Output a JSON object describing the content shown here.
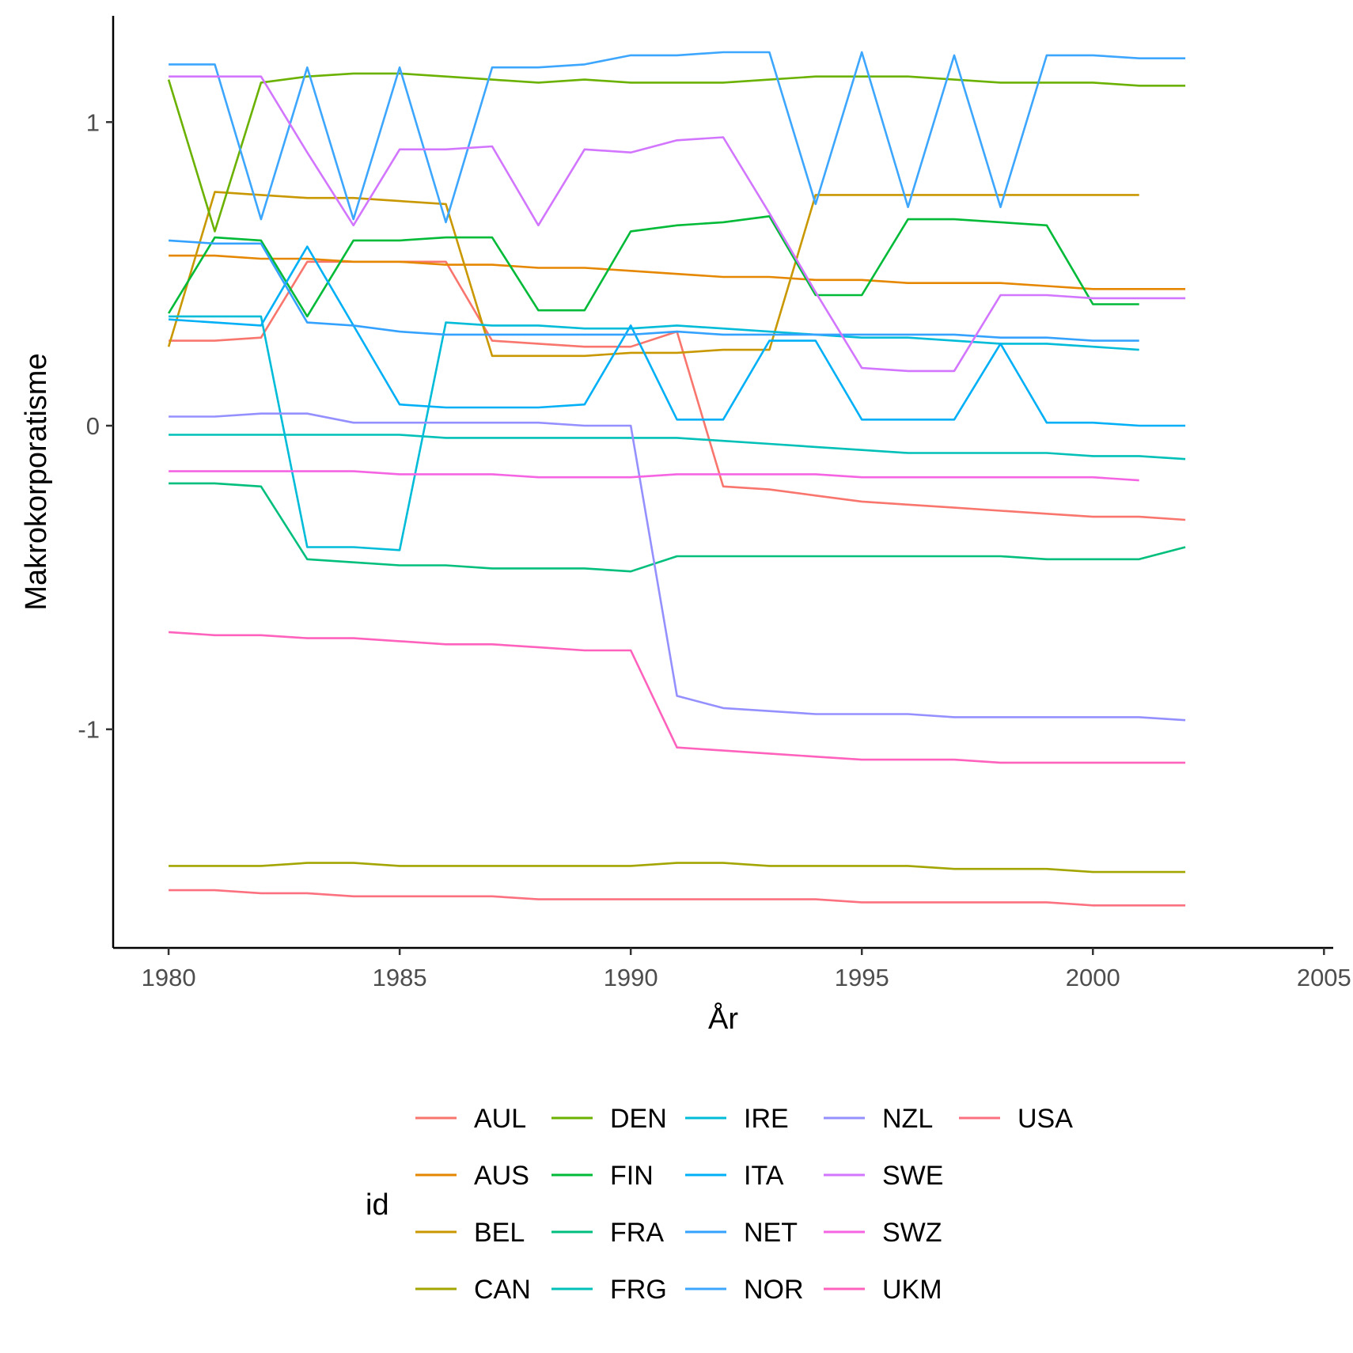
{
  "chart_data": {
    "type": "line",
    "title": "",
    "xlabel": "År",
    "ylabel": "Makrokorporatisme",
    "xlim": [
      1978.8,
      2005.2
    ],
    "ylim": [
      -1.72,
      1.35
    ],
    "x_ticks": [
      1980,
      1985,
      1990,
      1995,
      2000,
      2005
    ],
    "y_ticks": [
      1,
      0,
      -1
    ],
    "y_tick_labels": [
      "1",
      "0",
      "-1"
    ],
    "grid": false,
    "legend": {
      "title": "id",
      "position": "bottom",
      "columns": 5
    },
    "series": [
      {
        "name": "AUL",
        "color": "#F8766D",
        "x": [
          1980,
          1981,
          1982,
          1983,
          1984,
          1985,
          1986,
          1987,
          1988,
          1989,
          1990,
          1991,
          1992,
          1993,
          1994,
          1995,
          1996,
          1997,
          1998,
          1999,
          2000,
          2001,
          2002
        ],
        "y": [
          0.28,
          0.28,
          0.29,
          0.54,
          0.54,
          0.54,
          0.54,
          0.28,
          0.27,
          0.26,
          0.26,
          0.31,
          -0.2,
          -0.21,
          -0.23,
          -0.25,
          -0.26,
          -0.27,
          -0.28,
          -0.29,
          -0.3,
          -0.3,
          -0.31
        ]
      },
      {
        "name": "AUS",
        "color": "#E58700",
        "x": [
          1980,
          1981,
          1982,
          1983,
          1984,
          1985,
          1986,
          1987,
          1988,
          1989,
          1990,
          1991,
          1992,
          1993,
          1994,
          1995,
          1996,
          1997,
          1998,
          1999,
          2000,
          2001,
          2002
        ],
        "y": [
          0.56,
          0.56,
          0.55,
          0.55,
          0.54,
          0.54,
          0.53,
          0.53,
          0.52,
          0.52,
          0.51,
          0.5,
          0.49,
          0.49,
          0.48,
          0.48,
          0.47,
          0.47,
          0.47,
          0.46,
          0.45,
          0.45,
          0.45
        ]
      },
      {
        "name": "BEL",
        "color": "#C99800",
        "x": [
          1980,
          1981,
          1982,
          1983,
          1984,
          1985,
          1986,
          1987,
          1988,
          1989,
          1990,
          1991,
          1992,
          1993,
          1994,
          1995,
          1996,
          1997,
          1998,
          1999,
          2000,
          2001
        ],
        "y": [
          0.26,
          0.77,
          0.76,
          0.75,
          0.75,
          0.74,
          0.73,
          0.23,
          0.23,
          0.23,
          0.24,
          0.24,
          0.25,
          0.25,
          0.76,
          0.76,
          0.76,
          0.76,
          0.76,
          0.76,
          0.76,
          0.76
        ]
      },
      {
        "name": "CAN",
        "color": "#A3A500",
        "x": [
          1980,
          1981,
          1982,
          1983,
          1984,
          1985,
          1986,
          1987,
          1988,
          1989,
          1990,
          1991,
          1992,
          1993,
          1994,
          1995,
          1996,
          1997,
          1998,
          1999,
          2000,
          2001,
          2002
        ],
        "y": [
          -1.45,
          -1.45,
          -1.45,
          -1.44,
          -1.44,
          -1.45,
          -1.45,
          -1.45,
          -1.45,
          -1.45,
          -1.45,
          -1.44,
          -1.44,
          -1.45,
          -1.45,
          -1.45,
          -1.45,
          -1.46,
          -1.46,
          -1.46,
          -1.47,
          -1.47,
          -1.47
        ]
      },
      {
        "name": "DEN",
        "color": "#6BB100",
        "x": [
          1980,
          1981,
          1982,
          1983,
          1984,
          1985,
          1986,
          1987,
          1988,
          1989,
          1990,
          1991,
          1992,
          1993,
          1994,
          1995,
          1996,
          1997,
          1998,
          1999,
          2000,
          2001,
          2002
        ],
        "y": [
          1.14,
          0.64,
          1.13,
          1.15,
          1.16,
          1.16,
          1.15,
          1.14,
          1.13,
          1.14,
          1.13,
          1.13,
          1.13,
          1.14,
          1.15,
          1.15,
          1.15,
          1.14,
          1.13,
          1.13,
          1.13,
          1.12,
          1.12
        ]
      },
      {
        "name": "FIN",
        "color": "#00BA38",
        "x": [
          1980,
          1981,
          1982,
          1983,
          1984,
          1985,
          1986,
          1987,
          1988,
          1989,
          1990,
          1991,
          1992,
          1993,
          1994,
          1995,
          1996,
          1997,
          1998,
          1999,
          2000,
          2001
        ],
        "y": [
          0.37,
          0.62,
          0.61,
          0.36,
          0.61,
          0.61,
          0.62,
          0.62,
          0.38,
          0.38,
          0.64,
          0.66,
          0.67,
          0.69,
          0.43,
          0.43,
          0.68,
          0.68,
          0.67,
          0.66,
          0.4,
          0.4
        ]
      },
      {
        "name": "FRA",
        "color": "#00BF7D",
        "x": [
          1980,
          1981,
          1982,
          1983,
          1984,
          1985,
          1986,
          1987,
          1988,
          1989,
          1990,
          1991,
          1992,
          1993,
          1994,
          1995,
          1996,
          1997,
          1998,
          1999,
          2000,
          2001,
          2002
        ],
        "y": [
          -0.19,
          -0.19,
          -0.2,
          -0.44,
          -0.45,
          -0.46,
          -0.46,
          -0.47,
          -0.47,
          -0.47,
          -0.48,
          -0.43,
          -0.43,
          -0.43,
          -0.43,
          -0.43,
          -0.43,
          -0.43,
          -0.43,
          -0.44,
          -0.44,
          -0.44,
          -0.4
        ]
      },
      {
        "name": "FRG",
        "color": "#00C0B8",
        "x": [
          1980,
          1981,
          1982,
          1983,
          1984,
          1985,
          1986,
          1987,
          1988,
          1989,
          1990,
          1991,
          1992,
          1993,
          1994,
          1995,
          1996,
          1997,
          1998,
          1999,
          2000,
          2001,
          2002
        ],
        "y": [
          -0.03,
          -0.03,
          -0.03,
          -0.03,
          -0.03,
          -0.03,
          -0.04,
          -0.04,
          -0.04,
          -0.04,
          -0.04,
          -0.04,
          -0.05,
          -0.06,
          -0.07,
          -0.08,
          -0.09,
          -0.09,
          -0.09,
          -0.09,
          -0.1,
          -0.1,
          -0.11
        ]
      },
      {
        "name": "IRE",
        "color": "#00BCD8",
        "x": [
          1980,
          1981,
          1982,
          1983,
          1984,
          1985,
          1986,
          1987,
          1988,
          1989,
          1990,
          1991,
          1992,
          1993,
          1994,
          1995,
          1996,
          1997,
          1998,
          1999,
          2000,
          2001
        ],
        "y": [
          0.36,
          0.36,
          0.36,
          -0.4,
          -0.4,
          -0.41,
          0.34,
          0.33,
          0.33,
          0.32,
          0.32,
          0.33,
          0.32,
          0.31,
          0.3,
          0.29,
          0.29,
          0.28,
          0.27,
          0.27,
          0.26,
          0.25
        ]
      },
      {
        "name": "ITA",
        "color": "#00B0F6",
        "x": [
          1980,
          1981,
          1982,
          1983,
          1984,
          1985,
          1986,
          1987,
          1988,
          1989,
          1990,
          1991,
          1992,
          1993,
          1994,
          1995,
          1996,
          1997,
          1998,
          1999,
          2000,
          2001,
          2002
        ],
        "y": [
          0.35,
          0.34,
          0.33,
          0.59,
          0.33,
          0.07,
          0.06,
          0.06,
          0.06,
          0.07,
          0.33,
          0.02,
          0.02,
          0.28,
          0.28,
          0.02,
          0.02,
          0.02,
          0.27,
          0.01,
          0.01,
          0.0,
          0.0
        ]
      },
      {
        "name": "NET",
        "color": "#35A2FF",
        "x": [
          1980,
          1981,
          1982,
          1983,
          1984,
          1985,
          1986,
          1987,
          1988,
          1989,
          1990,
          1991,
          1992,
          1993,
          1994,
          1995,
          1996,
          1997,
          1998,
          1999,
          2000,
          2001
        ],
        "y": [
          0.61,
          0.6,
          0.6,
          0.34,
          0.33,
          0.31,
          0.3,
          0.3,
          0.3,
          0.3,
          0.3,
          0.31,
          0.3,
          0.3,
          0.3,
          0.3,
          0.3,
          0.3,
          0.29,
          0.29,
          0.28,
          0.28
        ]
      },
      {
        "name": "NOR",
        "color": "#3DA6FF",
        "x": [
          1980,
          1981,
          1982,
          1983,
          1984,
          1985,
          1986,
          1987,
          1988,
          1989,
          1990,
          1991,
          1992,
          1993,
          1994,
          1995,
          1996,
          1997,
          1998,
          1999,
          2000,
          2001,
          2002
        ],
        "y": [
          1.19,
          1.19,
          0.68,
          1.18,
          0.68,
          1.18,
          0.67,
          1.18,
          1.18,
          1.19,
          1.22,
          1.22,
          1.23,
          1.23,
          0.73,
          1.23,
          0.72,
          1.22,
          0.72,
          1.22,
          1.22,
          1.21,
          1.21
        ]
      },
      {
        "name": "NZL",
        "color": "#9590FF",
        "x": [
          1980,
          1981,
          1982,
          1983,
          1984,
          1985,
          1986,
          1987,
          1988,
          1989,
          1990,
          1991,
          1992,
          1993,
          1994,
          1995,
          1996,
          1997,
          1998,
          1999,
          2000,
          2001,
          2002
        ],
        "y": [
          0.03,
          0.03,
          0.04,
          0.04,
          0.01,
          0.01,
          0.01,
          0.01,
          0.01,
          0.0,
          0.0,
          -0.89,
          -0.93,
          -0.94,
          -0.95,
          -0.95,
          -0.95,
          -0.96,
          -0.96,
          -0.96,
          -0.96,
          -0.96,
          -0.97
        ]
      },
      {
        "name": "SWE",
        "color": "#D376FF",
        "x": [
          1980,
          1981,
          1982,
          1983,
          1984,
          1985,
          1986,
          1987,
          1988,
          1989,
          1990,
          1991,
          1992,
          1993,
          1994,
          1995,
          1996,
          1997,
          1998,
          1999,
          2000,
          2001,
          2002
        ],
        "y": [
          1.15,
          1.15,
          1.15,
          0.9,
          0.66,
          0.91,
          0.91,
          0.92,
          0.66,
          0.91,
          0.9,
          0.94,
          0.95,
          0.7,
          0.44,
          0.19,
          0.18,
          0.18,
          0.43,
          0.43,
          0.42,
          0.42,
          0.42
        ]
      },
      {
        "name": "SWZ",
        "color": "#F564E3",
        "x": [
          1980,
          1981,
          1982,
          1983,
          1984,
          1985,
          1986,
          1987,
          1988,
          1989,
          1990,
          1991,
          1992,
          1993,
          1994,
          1995,
          1996,
          1997,
          1998,
          1999,
          2000,
          2001
        ],
        "y": [
          -0.15,
          -0.15,
          -0.15,
          -0.15,
          -0.15,
          -0.16,
          -0.16,
          -0.16,
          -0.17,
          -0.17,
          -0.17,
          -0.16,
          -0.16,
          -0.16,
          -0.16,
          -0.17,
          -0.17,
          -0.17,
          -0.17,
          -0.17,
          -0.17,
          -0.18
        ]
      },
      {
        "name": "UKM",
        "color": "#FF62BC",
        "x": [
          1980,
          1981,
          1982,
          1983,
          1984,
          1985,
          1986,
          1987,
          1988,
          1989,
          1990,
          1991,
          1992,
          1993,
          1994,
          1995,
          1996,
          1997,
          1998,
          1999,
          2000,
          2001,
          2002
        ],
        "y": [
          -0.68,
          -0.69,
          -0.69,
          -0.7,
          -0.7,
          -0.71,
          -0.72,
          -0.72,
          -0.73,
          -0.74,
          -0.74,
          -1.06,
          -1.07,
          -1.08,
          -1.09,
          -1.1,
          -1.1,
          -1.1,
          -1.11,
          -1.11,
          -1.11,
          -1.11,
          -1.11
        ]
      },
      {
        "name": "USA",
        "color": "#FC717F",
        "x": [
          1980,
          1981,
          1982,
          1983,
          1984,
          1985,
          1986,
          1987,
          1988,
          1989,
          1990,
          1991,
          1992,
          1993,
          1994,
          1995,
          1996,
          1997,
          1998,
          1999,
          2000,
          2001,
          2002
        ],
        "y": [
          -1.53,
          -1.53,
          -1.54,
          -1.54,
          -1.55,
          -1.55,
          -1.55,
          -1.55,
          -1.56,
          -1.56,
          -1.56,
          -1.56,
          -1.56,
          -1.56,
          -1.56,
          -1.57,
          -1.57,
          -1.57,
          -1.57,
          -1.57,
          -1.58,
          -1.58,
          -1.58
        ]
      }
    ]
  }
}
